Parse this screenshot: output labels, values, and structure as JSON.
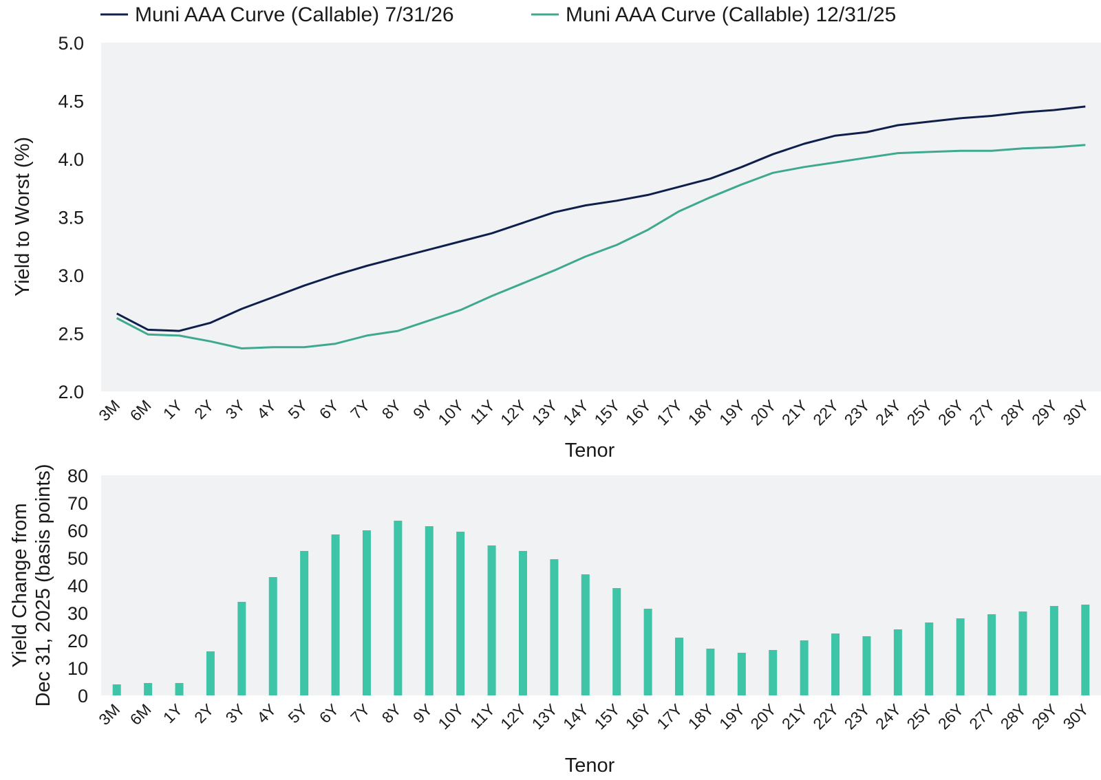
{
  "chart_data": [
    {
      "type": "line",
      "title": "",
      "xlabel": "Tenor",
      "ylabel": "Yield to Worst (%)",
      "ylim": [
        2.0,
        5.0
      ],
      "yticks": [
        "2.0",
        "2.5",
        "3.0",
        "3.5",
        "4.0",
        "4.5",
        "5.0"
      ],
      "grid": false,
      "legend_position": "top",
      "categories": [
        "3M",
        "6M",
        "1Y",
        "2Y",
        "3Y",
        "4Y",
        "5Y",
        "6Y",
        "7Y",
        "8Y",
        "9Y",
        "10Y",
        "11Y",
        "12Y",
        "13Y",
        "14Y",
        "15Y",
        "16Y",
        "17Y",
        "18Y",
        "19Y",
        "20Y",
        "21Y",
        "22Y",
        "23Y",
        "24Y",
        "25Y",
        "26Y",
        "27Y",
        "28Y",
        "29Y",
        "30Y"
      ],
      "series": [
        {
          "name": "Muni AAA Curve (Callable) 7/31/26",
          "color": "#0f1f4b",
          "values": [
            2.67,
            2.53,
            2.52,
            2.59,
            2.71,
            2.81,
            2.91,
            3.0,
            3.08,
            3.15,
            3.22,
            3.29,
            3.36,
            3.45,
            3.54,
            3.6,
            3.64,
            3.69,
            3.76,
            3.83,
            3.93,
            4.04,
            4.13,
            4.2,
            4.23,
            4.29,
            4.32,
            4.35,
            4.37,
            4.4,
            4.42,
            4.45
          ]
        },
        {
          "name": "Muni AAA Curve (Callable) 12/31/25",
          "color": "#3ea98f",
          "values": [
            2.63,
            2.49,
            2.48,
            2.43,
            2.37,
            2.38,
            2.38,
            2.41,
            2.48,
            2.52,
            2.61,
            2.7,
            2.82,
            2.93,
            3.04,
            3.16,
            3.26,
            3.39,
            3.55,
            3.67,
            3.78,
            3.88,
            3.93,
            3.97,
            4.01,
            4.05,
            4.06,
            4.07,
            4.07,
            4.09,
            4.1,
            4.12
          ]
        }
      ]
    },
    {
      "type": "bar",
      "title": "",
      "xlabel": "Tenor",
      "ylabel": [
        "Yield Change from",
        "Dec 31, 2025 (basis points)"
      ],
      "ylim": [
        0,
        80
      ],
      "yticks": [
        "0",
        "10",
        "20",
        "30",
        "40",
        "50",
        "60",
        "70",
        "80"
      ],
      "grid": false,
      "color": "#3ec4a6",
      "categories": [
        "3M",
        "6M",
        "1Y",
        "2Y",
        "3Y",
        "4Y",
        "5Y",
        "6Y",
        "7Y",
        "8Y",
        "9Y",
        "10Y",
        "11Y",
        "12Y",
        "13Y",
        "14Y",
        "15Y",
        "16Y",
        "17Y",
        "18Y",
        "19Y",
        "20Y",
        "21Y",
        "22Y",
        "23Y",
        "24Y",
        "25Y",
        "26Y",
        "27Y",
        "28Y",
        "29Y",
        "30Y"
      ],
      "values": [
        4,
        4.5,
        4.5,
        16,
        34,
        43,
        52.5,
        58.5,
        60,
        63.5,
        61.5,
        59.5,
        54.5,
        52.5,
        49.5,
        44,
        39,
        31.5,
        21,
        17,
        15.5,
        16.5,
        20,
        22.5,
        21.5,
        24,
        26.5,
        28,
        29.5,
        30.5,
        32.5,
        33
      ]
    }
  ]
}
